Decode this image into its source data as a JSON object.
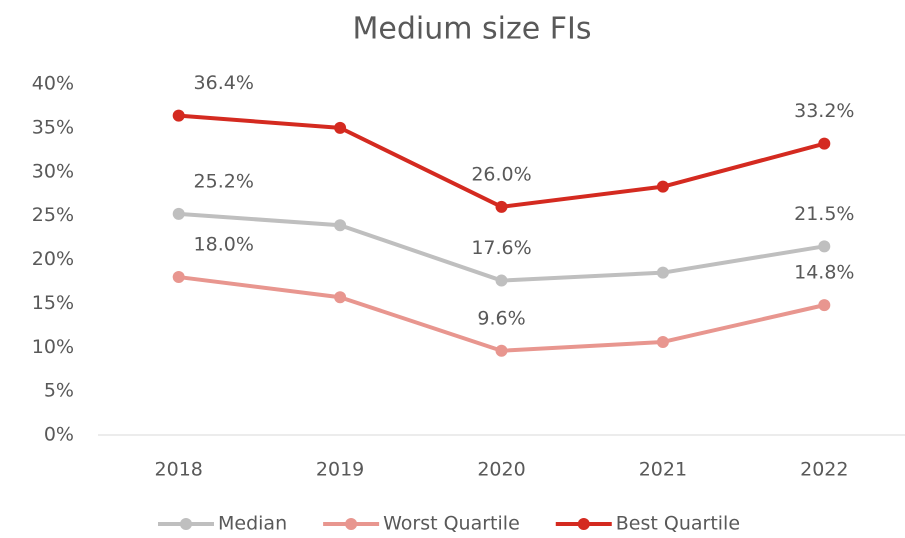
{
  "chart_data": {
    "type": "line",
    "title": "Medium size FIs",
    "categories": [
      "2018",
      "2019",
      "2020",
      "2021",
      "2022"
    ],
    "series": [
      {
        "name": "Median",
        "color": "#bfbfbf",
        "values": [
          25.2,
          23.9,
          17.6,
          18.5,
          21.5
        ],
        "value_labels": [
          "25.2%",
          null,
          "17.6%",
          null,
          "21.5%"
        ]
      },
      {
        "name": "Worst Quartile",
        "color": "#e8968f",
        "values": [
          18.0,
          15.7,
          9.6,
          10.6,
          14.8
        ],
        "value_labels": [
          "18.0%",
          null,
          "9.6%",
          null,
          "14.8%"
        ]
      },
      {
        "name": "Best Quartile",
        "color": "#d42a20",
        "values": [
          36.4,
          35.0,
          26.0,
          28.3,
          33.2
        ],
        "value_labels": [
          "36.4%",
          null,
          "26.0%",
          null,
          "33.2%"
        ]
      }
    ],
    "ylim": [
      0,
      40
    ],
    "yticks": [
      {
        "value": 0,
        "label": "0%"
      },
      {
        "value": 5,
        "label": "5%"
      },
      {
        "value": 10,
        "label": "10%"
      },
      {
        "value": 15,
        "label": "15%"
      },
      {
        "value": 20,
        "label": "20%"
      },
      {
        "value": 25,
        "label": "25%"
      },
      {
        "value": 30,
        "label": "30%"
      },
      {
        "value": 35,
        "label": "35%"
      },
      {
        "value": 40,
        "label": "40%"
      }
    ],
    "grid": false,
    "legend": "bottom"
  }
}
